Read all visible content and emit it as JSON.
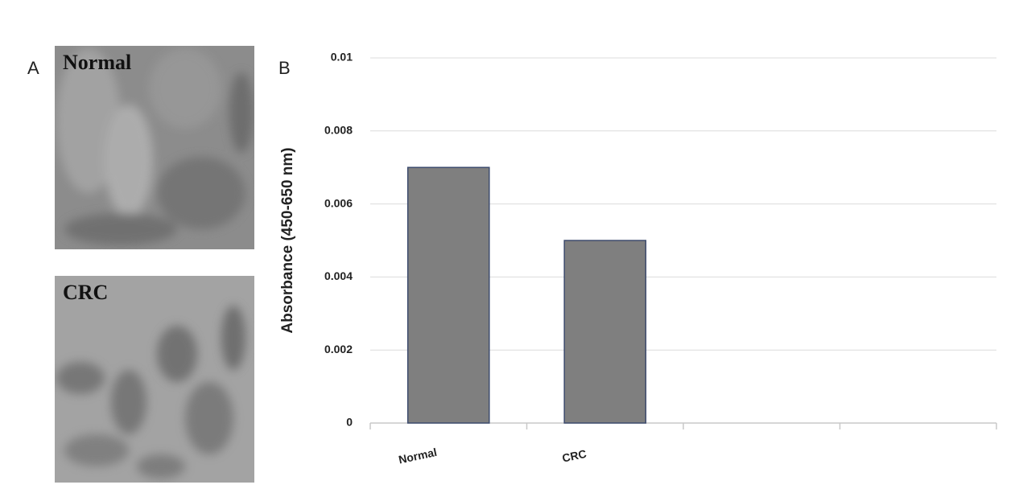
{
  "panel_labels": [
    "A",
    "B"
  ],
  "images": [
    {
      "label": "Normal"
    },
    {
      "label": "CRC"
    }
  ],
  "chart_data": {
    "type": "bar",
    "y_label": "Absorbance (450-650 nm)",
    "categories": [
      "Normal",
      "CRC",
      null,
      null
    ],
    "values": [
      0.007,
      0.005,
      null,
      null
    ],
    "color": "#7f7f7f",
    "edge_color": "#3e4c6e",
    "ylim": [
      0,
      0.01
    ],
    "yticks": [
      0,
      0.002,
      0.004,
      0.006,
      0.008,
      0.01
    ],
    "grid": true
  }
}
